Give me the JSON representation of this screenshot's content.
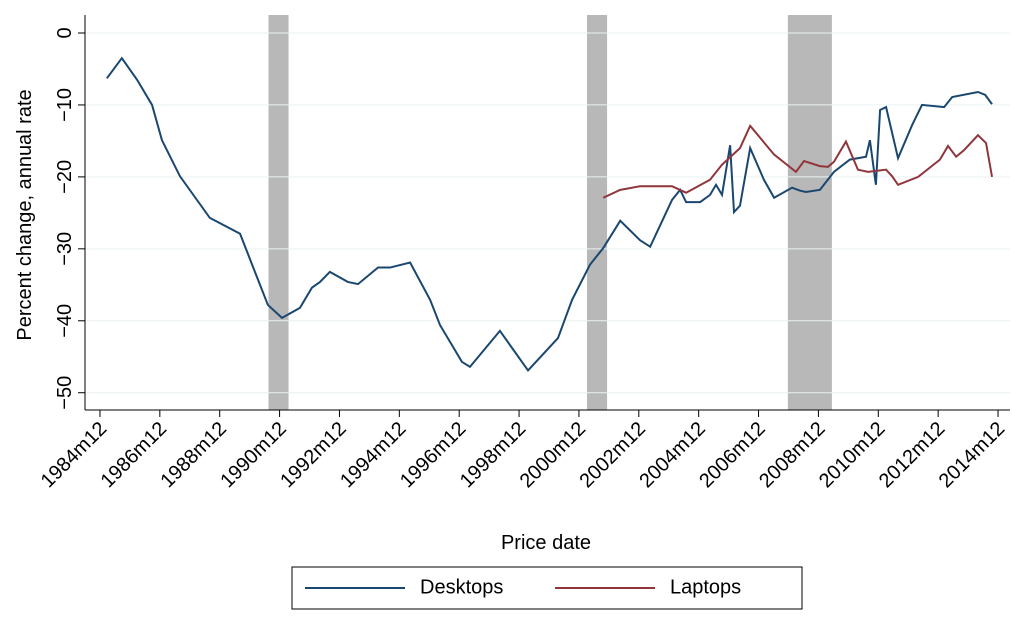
{
  "chart_data": {
    "type": "line",
    "x_label": "Price date",
    "y_label": "Percent change, annual rate",
    "xlim": [
      1984.42,
      2015.32
    ],
    "ylim": [
      -52.4,
      2.5
    ],
    "xticks": [
      {
        "value": 1984.92,
        "label": "1984m12"
      },
      {
        "value": 1986.92,
        "label": "1986m12"
      },
      {
        "value": 1988.92,
        "label": "1988m12"
      },
      {
        "value": 1990.92,
        "label": "1990m12"
      },
      {
        "value": 1992.92,
        "label": "1992m12"
      },
      {
        "value": 1994.92,
        "label": "1994m12"
      },
      {
        "value": 1996.92,
        "label": "1996m12"
      },
      {
        "value": 1998.92,
        "label": "1998m12"
      },
      {
        "value": 2000.92,
        "label": "2000m12"
      },
      {
        "value": 2002.92,
        "label": "2002m12"
      },
      {
        "value": 2004.92,
        "label": "2004m12"
      },
      {
        "value": 2006.92,
        "label": "2006m12"
      },
      {
        "value": 2008.92,
        "label": "2008m12"
      },
      {
        "value": 2010.92,
        "label": "2010m12"
      },
      {
        "value": 2012.92,
        "label": "2012m12"
      },
      {
        "value": 2014.92,
        "label": "2014m12"
      }
    ],
    "yticks": [
      {
        "value": 0,
        "label": "0"
      },
      {
        "value": -10,
        "label": "−10"
      },
      {
        "value": -20,
        "label": "−20"
      },
      {
        "value": -30,
        "label": "−30"
      },
      {
        "value": -40,
        "label": "−40"
      },
      {
        "value": -50,
        "label": "−50"
      }
    ],
    "grid": true,
    "legend": "bottom",
    "shaded_periods": [
      [
        1990.55,
        1991.22
      ],
      [
        2001.19,
        2001.86
      ],
      [
        2007.9,
        2009.37
      ]
    ],
    "shade_color": "#b8b8b8",
    "series": [
      {
        "name": "Desktops",
        "color": "#1a476f",
        "x": [
          1985.15,
          1985.65,
          1986.16,
          1986.66,
          1986.99,
          1987.59,
          1988.59,
          1989.6,
          1990.2,
          1990.53,
          1991.0,
          1991.6,
          1992.0,
          1992.27,
          1992.6,
          1993.2,
          1993.54,
          1994.21,
          1994.61,
          1995.28,
          1995.95,
          1996.28,
          1997.01,
          1997.28,
          1998.28,
          1999.22,
          2000.22,
          2000.69,
          2001.29,
          2001.73,
          2002.3,
          2002.96,
          2003.3,
          2004.03,
          2004.3,
          2004.5,
          2004.97,
          2005.3,
          2005.5,
          2005.7,
          2005.97,
          2006.1,
          2006.3,
          2006.64,
          2007.1,
          2007.44,
          2008.04,
          2008.3,
          2008.5,
          2008.97,
          2009.44,
          2009.97,
          2010.51,
          2010.64,
          2010.84,
          2010.98,
          2011.18,
          2011.58,
          2012.05,
          2012.38,
          2013.12,
          2013.39,
          2014.25,
          2014.49,
          2014.72
        ],
        "values": [
          -6.3,
          -3.5,
          -6.5,
          -10,
          -14.9,
          -19.9,
          -25.7,
          -27.9,
          -34.3,
          -37.8,
          -39.6,
          -38.2,
          -35.4,
          -34.6,
          -33.2,
          -34.6,
          -34.9,
          -32.6,
          -32.6,
          -31.9,
          -37.1,
          -40.6,
          -45.7,
          -46.4,
          -41.4,
          -46.9,
          -42.4,
          -37.1,
          -32.2,
          -29.9,
          -26.1,
          -28.8,
          -29.7,
          -23.2,
          -21.8,
          -23.5,
          -23.5,
          -22.5,
          -21.1,
          -22.5,
          -15.6,
          -24.9,
          -24,
          -16,
          -20.4,
          -22.9,
          -21.5,
          -21.9,
          -22.1,
          -21.8,
          -19.3,
          -17.6,
          -17.2,
          -14.9,
          -21.1,
          -10.7,
          -10.3,
          -17.4,
          -12.8,
          -10,
          -10.3,
          -8.9,
          -8.2,
          -8.6,
          -9.9
        ]
      },
      {
        "name": "Laptops",
        "color": "#90353b",
        "x": [
          2001.73,
          2002.3,
          2002.96,
          2004.03,
          2004.5,
          2005.3,
          2005.7,
          2006.3,
          2006.64,
          2007.44,
          2008.17,
          2008.44,
          2008.97,
          2009.24,
          2009.44,
          2009.84,
          2010.24,
          2010.58,
          2011.18,
          2011.38,
          2011.58,
          2012.25,
          2012.98,
          2013.25,
          2013.52,
          2013.78,
          2014.25,
          2014.52,
          2014.72
        ],
        "values": [
          -22.9,
          -21.8,
          -21.3,
          -21.3,
          -22.2,
          -20.4,
          -18.3,
          -16,
          -12.9,
          -16.9,
          -19.3,
          -17.8,
          -18.5,
          -18.6,
          -17.9,
          -15.1,
          -19,
          -19.3,
          -19,
          -19.9,
          -21.1,
          -20,
          -17.6,
          -15.7,
          -17.2,
          -16.3,
          -14.2,
          -15.3,
          -20
        ]
      }
    ]
  }
}
